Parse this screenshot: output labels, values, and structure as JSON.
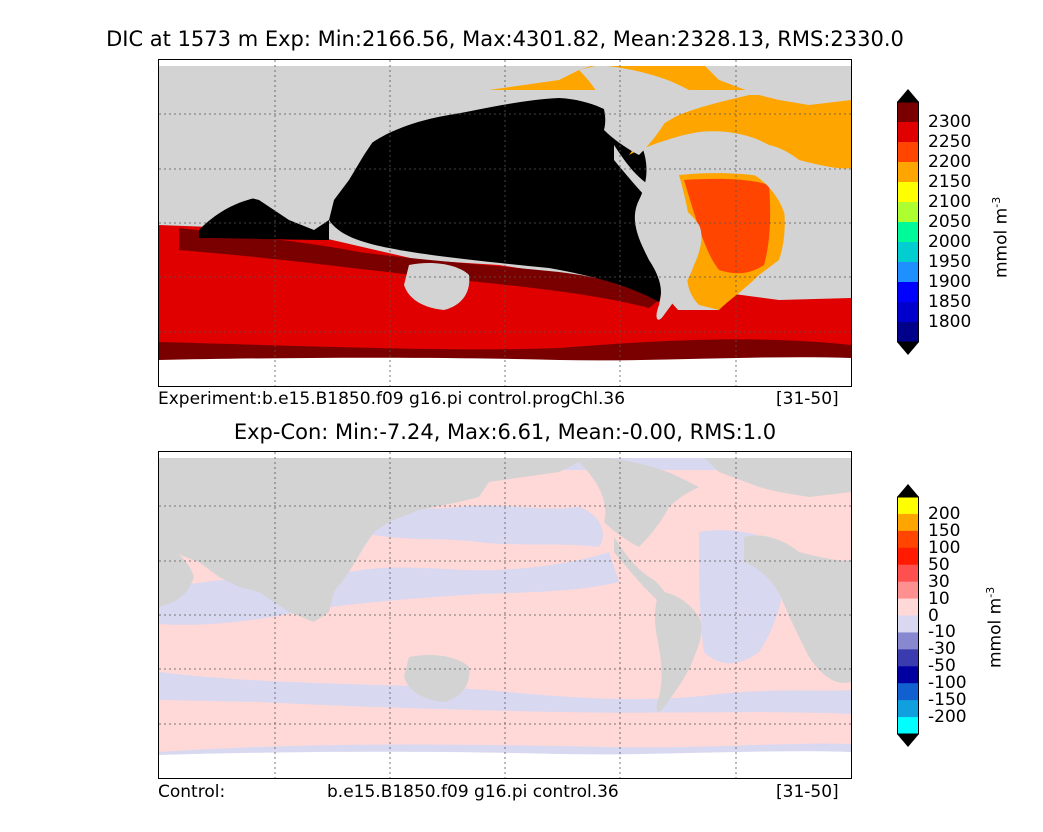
{
  "top": {
    "title": "DIC at 1573 m Exp: Min:2166.56, Max:4301.82, Mean:2328.13, RMS:2330.0",
    "caption_left": "Experiment:b.e15.B1850.f09 g16.pi control.progChl.36",
    "caption_right": "[31-50]",
    "colorbar": {
      "unit": "mmol m",
      "unit_exp": "-3",
      "ticks": [
        "2300",
        "2250",
        "2200",
        "2150",
        "2100",
        "2050",
        "2000",
        "1950",
        "1900",
        "1850",
        "1800"
      ],
      "colors": [
        "#7a0000",
        "#e00000",
        "#ff4500",
        "#ffa500",
        "#ffff00",
        "#adff2f",
        "#00fa9a",
        "#00ced1",
        "#1e90ff",
        "#0000ff",
        "#0000cd",
        "#00008b"
      ],
      "over_color": "#000000",
      "under_color": "#000000"
    }
  },
  "bottom": {
    "title": "Exp-Con: Min:-7.24, Max:6.61, Mean:-0.00, RMS:1.0",
    "caption_left": "Control:",
    "caption_mid": "b.e15.B1850.f09 g16.pi control.36",
    "caption_right": "[31-50]",
    "colorbar": {
      "unit": "mmol m",
      "unit_exp": "-3",
      "ticks": [
        "200",
        "150",
        "100",
        "50",
        "30",
        "10",
        "0",
        "-10",
        "-30",
        "-50",
        "-100",
        "-150",
        "-200"
      ],
      "colors": [
        "#ffff00",
        "#ffa500",
        "#ff4500",
        "#ff1a00",
        "#ff5050",
        "#ff9090",
        "#ffd8d8",
        "#d8d8f0",
        "#8888d0",
        "#3b3bb0",
        "#0000a0",
        "#1060d0",
        "#10a0e0",
        "#00ffff"
      ],
      "over_color": "#000000",
      "under_color": "#000000"
    }
  },
  "colors": {
    "land": "#d3d3d3",
    "ice": "#ffffff",
    "grid": "#555555"
  }
}
